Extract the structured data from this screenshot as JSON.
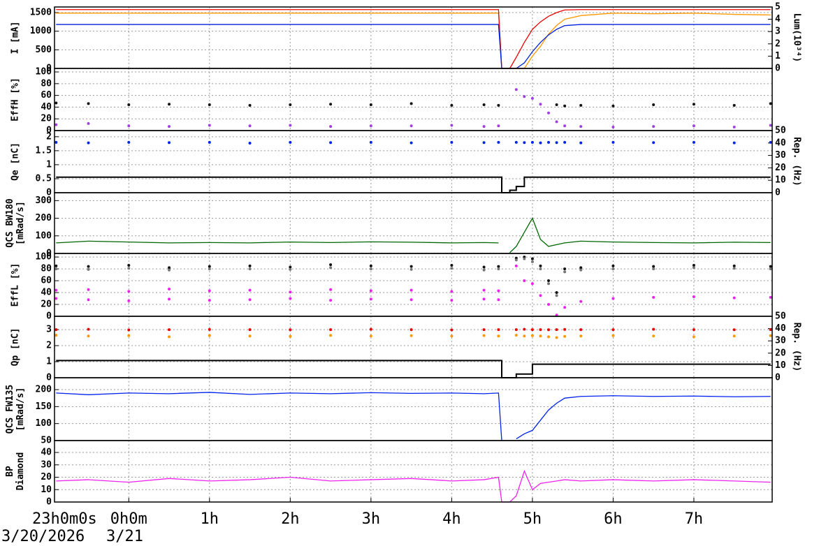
{
  "chart_data": [
    {
      "type": "line",
      "ylabel": [
        "I [mA]"
      ],
      "y2label": "Lum(10³⁴)",
      "ylim": [
        0,
        1650
      ],
      "yticks": [
        0,
        500,
        1000,
        1500
      ],
      "y2lim": [
        0,
        5
      ],
      "y2ticks": [
        0,
        1,
        2,
        3,
        4,
        5
      ],
      "grid": true,
      "x": [
        -0.9,
        -0.5,
        0,
        0.5,
        1,
        1.5,
        2,
        2.5,
        3,
        3.5,
        4,
        4.4,
        4.58,
        4.62,
        4.72,
        4.8,
        4.9,
        5.0,
        5.1,
        5.2,
        5.3,
        5.4,
        5.6,
        6,
        6.5,
        7,
        7.5,
        7.95
      ],
      "series": [
        {
          "color": "#ff9900",
          "axis": "y2",
          "mode": "lines",
          "values": [
            4.5,
            4.5,
            4.5,
            4.5,
            4.5,
            4.5,
            4.5,
            4.5,
            4.5,
            4.5,
            4.5,
            4.5,
            4.5,
            0,
            0,
            0,
            0,
            1.0,
            1.8,
            2.8,
            3.5,
            4.0,
            4.3,
            4.5,
            4.45,
            4.5,
            4.4,
            4.35
          ]
        },
        {
          "color": "#ee0000",
          "mode": "lines",
          "values": [
            1580,
            1580,
            1580,
            1580,
            1580,
            1580,
            1580,
            1580,
            1580,
            1580,
            1580,
            1580,
            1580,
            0,
            0,
            300,
            700,
            1050,
            1250,
            1400,
            1500,
            1570,
            1580,
            1580,
            1580,
            1580,
            1580,
            1580
          ]
        },
        {
          "color": "#0022dd",
          "mode": "lines",
          "values": [
            1180,
            1180,
            1180,
            1180,
            1180,
            1180,
            1180,
            1180,
            1180,
            1180,
            1180,
            1180,
            1180,
            0,
            0,
            0,
            150,
            450,
            700,
            900,
            1050,
            1150,
            1180,
            1180,
            1180,
            1180,
            1180,
            1180
          ]
        }
      ]
    },
    {
      "type": "line",
      "ylabel": [
        "EffH [%]"
      ],
      "ylim": [
        0,
        106
      ],
      "yticks": [
        0,
        20,
        40,
        60,
        80,
        100
      ],
      "grid": true,
      "x": [
        -0.9,
        -0.5,
        0,
        0.5,
        1,
        1.5,
        2,
        2.5,
        3,
        3.5,
        4,
        4.4,
        4.58,
        4.62,
        4.72,
        4.8,
        4.9,
        5.0,
        5.1,
        5.2,
        5.3,
        5.4,
        5.6,
        6,
        6.5,
        7,
        7.5,
        7.95
      ],
      "series": [
        {
          "color": "#111111",
          "mode": "markers",
          "values": [
            47,
            46,
            44,
            45,
            44,
            43,
            44,
            45,
            44,
            46,
            43,
            44,
            43,
            null,
            null,
            null,
            null,
            null,
            null,
            null,
            44,
            42,
            43,
            42,
            44,
            45,
            43,
            46
          ]
        },
        {
          "color": "#a040e0",
          "mode": "markers",
          "values": [
            10,
            12,
            8,
            7,
            9,
            8,
            9,
            7,
            8,
            8,
            9,
            7,
            8,
            null,
            null,
            70,
            58,
            55,
            45,
            30,
            15,
            8,
            7,
            6,
            7,
            8,
            6,
            9
          ]
        }
      ]
    },
    {
      "type": "line",
      "ylabel": [
        "Qe [nC]"
      ],
      "y2label": "Rep. (Hz)",
      "ylim": [
        0,
        2.22
      ],
      "yticks": [
        0,
        0.5,
        1,
        1.5,
        2
      ],
      "y2lim": [
        0,
        50
      ],
      "y2ticks": [
        0,
        10,
        20,
        30,
        40,
        50
      ],
      "grid": true,
      "x": [
        -0.9,
        -0.5,
        0,
        0.5,
        1,
        1.5,
        2,
        2.5,
        3,
        3.5,
        4,
        4.4,
        4.58,
        4.62,
        4.72,
        4.8,
        4.9,
        5.0,
        5.1,
        5.2,
        5.3,
        5.4,
        5.6,
        6,
        6.5,
        7,
        7.5,
        7.95
      ],
      "series": [
        {
          "color": "#0022ee",
          "mode": "markers",
          "values": [
            1.8,
            1.78,
            1.8,
            1.79,
            1.8,
            1.77,
            1.8,
            1.79,
            1.8,
            1.78,
            1.8,
            1.79,
            1.8,
            null,
            null,
            1.8,
            1.79,
            1.8,
            1.78,
            1.8,
            1.79,
            1.8,
            1.78,
            1.8,
            1.79,
            1.8,
            1.78,
            1.8
          ]
        },
        {
          "color": "#000000",
          "axis": "y2",
          "mode": "steps",
          "values": [
            12.5,
            12.5,
            12.5,
            12.5,
            12.5,
            12.5,
            12.5,
            12.5,
            12.5,
            12.5,
            12.5,
            12.5,
            12.5,
            0,
            2,
            5,
            12.5,
            12.5,
            12.5,
            12.5,
            12.5,
            12.5,
            12.5,
            12.5,
            12.5,
            12.5,
            12.5,
            12.5
          ]
        }
      ]
    },
    {
      "type": "line",
      "ylabel": [
        "QCS BW180",
        "[mRad/s]"
      ],
      "ylim": [
        0,
        345
      ],
      "yticks": [
        0,
        100,
        200,
        300
      ],
      "grid": true,
      "x": [
        -0.9,
        -0.5,
        0,
        0.5,
        1,
        1.5,
        2,
        2.5,
        3,
        3.5,
        4,
        4.4,
        4.58,
        4.62,
        4.72,
        4.8,
        4.9,
        5.0,
        5.1,
        5.2,
        5.3,
        5.4,
        5.6,
        6,
        6.5,
        7,
        7.5,
        7.95
      ],
      "series": [
        {
          "color": "#006600",
          "mode": "lines",
          "values": [
            60,
            70,
            65,
            60,
            62,
            60,
            65,
            62,
            66,
            64,
            60,
            62,
            60,
            null,
            5,
            40,
            120,
            200,
            80,
            40,
            50,
            60,
            70,
            65,
            62,
            60,
            64,
            62
          ]
        }
      ]
    },
    {
      "type": "line",
      "ylabel": [
        "EffL [%]"
      ],
      "ylim": [
        0,
        106
      ],
      "yticks": [
        0,
        20,
        40,
        60,
        80,
        100
      ],
      "grid": true,
      "x": [
        -0.9,
        -0.5,
        0,
        0.5,
        1,
        1.5,
        2,
        2.5,
        3,
        3.5,
        4,
        4.4,
        4.58,
        4.62,
        4.72,
        4.8,
        4.9,
        5.0,
        5.1,
        5.2,
        5.3,
        5.4,
        5.6,
        6,
        6.5,
        7,
        7.5,
        7.95
      ],
      "series": [
        {
          "color": "#111111",
          "mode": "markers",
          "values": [
            85,
            84,
            86,
            82,
            84,
            85,
            83,
            87,
            85,
            84,
            86,
            83,
            84,
            null,
            null,
            98,
            100,
            97,
            85,
            60,
            40,
            80,
            82,
            85,
            84,
            86,
            85,
            84
          ]
        },
        {
          "color": "#777777",
          "mode": "markers",
          "values": [
            80,
            79,
            81,
            78,
            80,
            80,
            79,
            82,
            80,
            79,
            81,
            78,
            80,
            null,
            null,
            95,
            97,
            92,
            80,
            55,
            35,
            75,
            78,
            80,
            80,
            82,
            81,
            80
          ]
        },
        {
          "color": "#ee22ee",
          "mode": "markers",
          "values": [
            44,
            45,
            42,
            46,
            43,
            44,
            41,
            45,
            43,
            44,
            42,
            44,
            43,
            null,
            null,
            85,
            60,
            55,
            35,
            20,
            2,
            15,
            25,
            30,
            32,
            33,
            31,
            32
          ]
        },
        {
          "color": "#ee22ee",
          "mode": "markers",
          "values": [
            30,
            28,
            26,
            29,
            27,
            28,
            30,
            27,
            29,
            28,
            27,
            29,
            28,
            null,
            null,
            null,
            null,
            null,
            null,
            null,
            null,
            null,
            null,
            null,
            null,
            null,
            null,
            null
          ]
        }
      ]
    },
    {
      "type": "line",
      "ylabel": [
        "Qp [nC]"
      ],
      "y2label": "Rep. (Hz)",
      "ylim": [
        0,
        3.83
      ],
      "yticks": [
        0,
        1,
        2,
        3
      ],
      "y2lim": [
        0,
        50
      ],
      "y2ticks": [
        0,
        10,
        20,
        30,
        40,
        50
      ],
      "grid": true,
      "x": [
        -0.9,
        -0.5,
        0,
        0.5,
        1,
        1.5,
        2,
        2.5,
        3,
        3.5,
        4,
        4.4,
        4.58,
        4.62,
        4.72,
        4.8,
        4.9,
        5.0,
        5.1,
        5.2,
        5.3,
        5.4,
        5.6,
        6,
        6.5,
        7,
        7.5,
        7.95
      ],
      "series": [
        {
          "color": "#ff9900",
          "mode": "markers",
          "values": [
            2.65,
            2.6,
            2.62,
            2.55,
            2.63,
            2.6,
            2.58,
            2.64,
            2.6,
            2.62,
            2.6,
            2.63,
            2.6,
            null,
            null,
            2.65,
            2.6,
            2.62,
            2.6,
            2.55,
            2.5,
            2.58,
            2.6,
            2.62,
            2.6,
            2.55,
            2.6,
            2.62
          ]
        },
        {
          "color": "#ee0000",
          "mode": "markers",
          "values": [
            3.0,
            3.02,
            2.98,
            3.0,
            3.01,
            3.0,
            2.99,
            3.0,
            3.02,
            3.0,
            2.98,
            3.0,
            3.0,
            null,
            null,
            3.0,
            3.02,
            3.0,
            3.0,
            2.99,
            3.0,
            3.01,
            3.0,
            3.0,
            3.02,
            3.0,
            2.99,
            3.0
          ]
        },
        {
          "color": "#000000",
          "axis": "y2",
          "mode": "steps",
          "values": [
            14,
            14,
            14,
            14,
            14,
            14,
            14,
            14,
            14,
            14,
            14,
            14,
            14,
            0,
            0,
            3,
            3,
            11,
            11,
            11,
            11,
            11,
            11,
            11,
            11,
            11,
            11,
            11
          ]
        }
      ]
    },
    {
      "type": "line",
      "ylabel": [
        "QCS FW135",
        "[mRad/s]"
      ],
      "ylim": [
        50,
        235
      ],
      "yticks": [
        50,
        100,
        150,
        200
      ],
      "grid": true,
      "x": [
        -0.9,
        -0.5,
        0,
        0.5,
        1,
        1.5,
        2,
        2.5,
        3,
        3.5,
        4,
        4.4,
        4.58,
        4.62,
        4.72,
        4.8,
        4.9,
        5.0,
        5.1,
        5.2,
        5.3,
        5.4,
        5.6,
        6,
        6.5,
        7,
        7.5,
        7.95
      ],
      "series": [
        {
          "color": "#0022ee",
          "mode": "lines",
          "values": [
            190,
            185,
            190,
            188,
            192,
            186,
            190,
            188,
            191,
            189,
            190,
            188,
            190,
            50,
            null,
            55,
            70,
            80,
            110,
            140,
            160,
            175,
            180,
            182,
            180,
            181,
            179,
            180
          ]
        }
      ]
    },
    {
      "type": "line",
      "ylabel": [
        "BP",
        "Diamond"
      ],
      "ylim": [
        0,
        49.6
      ],
      "yticks": [
        0,
        10,
        20,
        30,
        40
      ],
      "grid": true,
      "x": [
        -0.9,
        -0.5,
        0,
        0.5,
        1,
        1.5,
        2,
        2.5,
        3,
        3.5,
        4,
        4.4,
        4.58,
        4.62,
        4.72,
        4.8,
        4.9,
        5.0,
        5.1,
        5.2,
        5.3,
        5.4,
        5.6,
        6,
        6.5,
        7,
        7.5,
        7.95
      ],
      "xlim": [
        -0.92,
        7.97
      ],
      "xticks": [
        {
          "value": 0,
          "label": "0h0m"
        },
        {
          "value": 1,
          "label": "1h"
        },
        {
          "value": 2,
          "label": "2h"
        },
        {
          "value": 3,
          "label": "3h"
        },
        {
          "value": 4,
          "label": "4h"
        },
        {
          "value": 5,
          "label": "5h"
        },
        {
          "value": 6,
          "label": "6h"
        },
        {
          "value": 7,
          "label": "7h"
        }
      ],
      "xstart_label": "23h0m0s",
      "xdate_labels": [
        "3/20/2026",
        "3/21"
      ],
      "series": [
        {
          "color": "#ee22ee",
          "mode": "lines",
          "values": [
            17,
            18,
            16,
            19,
            17,
            18,
            20,
            17,
            18,
            19,
            17,
            18,
            20,
            0,
            0,
            5,
            25,
            10,
            15,
            16,
            17,
            18,
            17,
            18,
            17,
            18,
            17,
            16
          ]
        }
      ]
    }
  ]
}
